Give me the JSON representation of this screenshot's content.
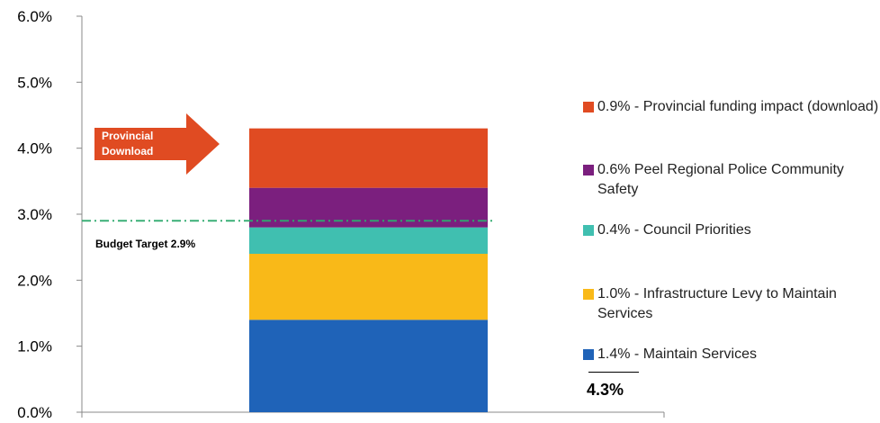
{
  "chart_data": {
    "type": "bar",
    "stacked": true,
    "categories": [
      ""
    ],
    "series": [
      {
        "name": "1.4% - Maintain Services",
        "values": [
          1.4
        ],
        "color": "#1F63B8"
      },
      {
        "name": "1.0% - Infrastructure Levy to Maintain Services",
        "values": [
          1.0
        ],
        "color": "#F9B918"
      },
      {
        "name": "0.4% - Council Priorities",
        "values": [
          0.4
        ],
        "color": "#40BFB0"
      },
      {
        "name": "0.6% Peel Regional Police Community Safety",
        "values": [
          0.6
        ],
        "color": "#7B1F7E"
      },
      {
        "name": "0.9% - Provincial funding impact (download)",
        "values": [
          0.9
        ],
        "color": "#E04B22"
      }
    ],
    "ylim": [
      0,
      6.0
    ],
    "yticks": [
      "0.0%",
      "1.0%",
      "2.0%",
      "3.0%",
      "4.0%",
      "5.0%",
      "6.0%"
    ],
    "ytick_values": [
      0,
      1,
      2,
      3,
      4,
      5,
      6
    ],
    "grid": false,
    "legend_position": "right",
    "target": {
      "label": "Budget Target 2.9%",
      "value": 2.9,
      "color": "#2EAA6E"
    },
    "annotation": {
      "label": "Provincial Download",
      "color": "#E04B22"
    },
    "total_label": "4.3%"
  }
}
